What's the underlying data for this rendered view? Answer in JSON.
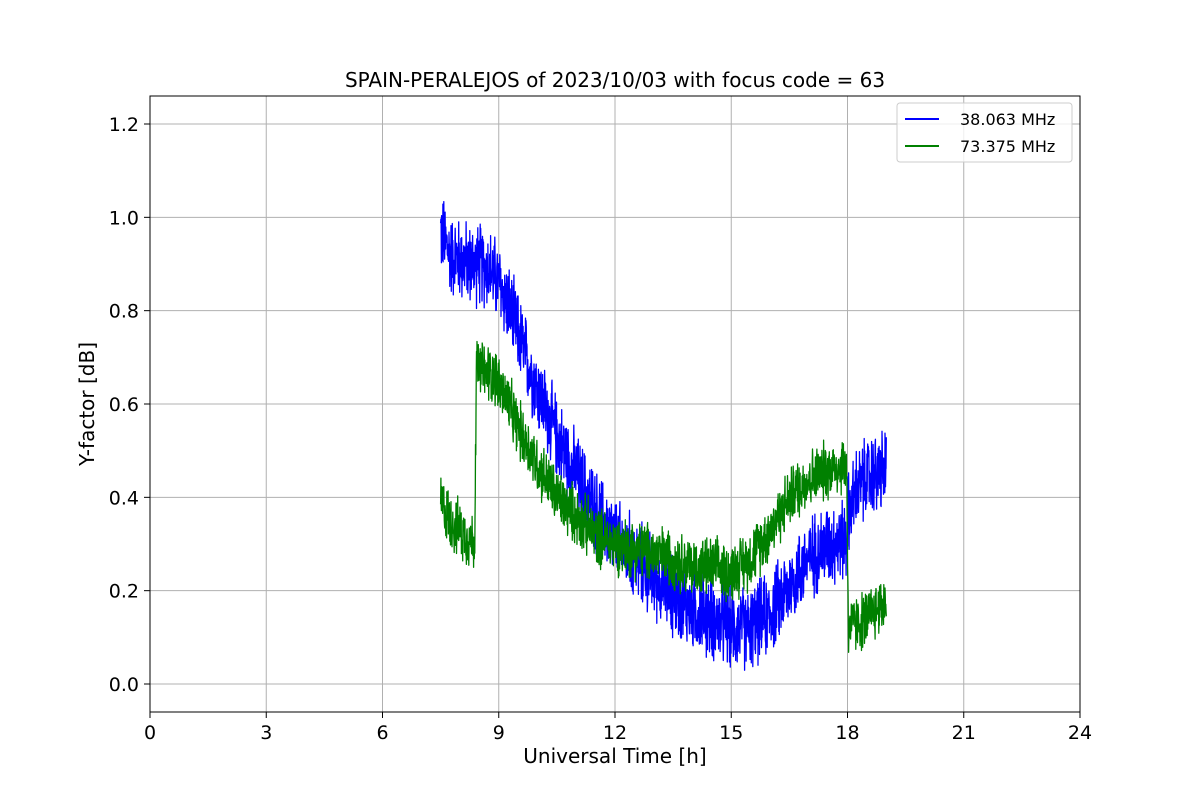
{
  "chart_data": {
    "type": "line",
    "title": "SPAIN-PERALEJOS of 2023/10/03 with focus code = 63",
    "xlabel": "Universal Time [h]",
    "ylabel": "Y-factor [dB]",
    "xlim": [
      0,
      24
    ],
    "ylim": [
      -0.06,
      1.26
    ],
    "xticks": [
      0,
      3,
      6,
      9,
      12,
      15,
      18,
      21,
      24
    ],
    "xtick_labels": [
      "0",
      "3",
      "6",
      "9",
      "12",
      "15",
      "18",
      "21",
      "24"
    ],
    "yticks": [
      0.0,
      0.2,
      0.4,
      0.6,
      0.8,
      1.0,
      1.2
    ],
    "ytick_labels": [
      "0.0",
      "0.2",
      "0.4",
      "0.6",
      "0.8",
      "1.0",
      "1.2"
    ],
    "grid": true,
    "legend_position": "top-right",
    "series": [
      {
        "name": "38.063 MHz",
        "color": "#0000ff",
        "noise": 0.07,
        "x": [
          7.5,
          7.75,
          8.0,
          8.25,
          8.5,
          8.75,
          9.0,
          9.25,
          9.5,
          9.75,
          10.0,
          10.5,
          11.0,
          11.5,
          12.0,
          12.5,
          13.0,
          13.5,
          14.0,
          14.5,
          15.0,
          15.5,
          16.0,
          16.5,
          17.0,
          17.5,
          17.98,
          18.0,
          18.25,
          18.5,
          18.75,
          19.0
        ],
        "y": [
          0.97,
          0.92,
          0.91,
          0.9,
          0.9,
          0.89,
          0.86,
          0.81,
          0.75,
          0.69,
          0.63,
          0.53,
          0.45,
          0.37,
          0.31,
          0.27,
          0.23,
          0.19,
          0.16,
          0.14,
          0.12,
          0.12,
          0.15,
          0.21,
          0.27,
          0.3,
          0.31,
          0.36,
          0.42,
          0.44,
          0.45,
          0.46
        ]
      },
      {
        "name": "73.375 MHz",
        "color": "#008000",
        "noise": 0.05,
        "x": [
          7.5,
          7.75,
          8.0,
          8.25,
          8.38,
          8.42,
          8.6,
          8.9,
          9.2,
          9.5,
          10.0,
          10.5,
          11.0,
          11.5,
          12.0,
          12.5,
          13.0,
          13.5,
          14.0,
          14.5,
          15.0,
          15.5,
          16.0,
          16.5,
          17.0,
          17.5,
          17.98,
          18.02,
          18.25,
          18.5,
          18.75,
          19.0
        ],
        "y": [
          0.39,
          0.35,
          0.33,
          0.31,
          0.3,
          0.68,
          0.67,
          0.66,
          0.61,
          0.55,
          0.47,
          0.4,
          0.36,
          0.32,
          0.3,
          0.29,
          0.28,
          0.27,
          0.25,
          0.25,
          0.24,
          0.27,
          0.33,
          0.4,
          0.44,
          0.46,
          0.47,
          0.12,
          0.13,
          0.14,
          0.16,
          0.18
        ]
      }
    ]
  }
}
